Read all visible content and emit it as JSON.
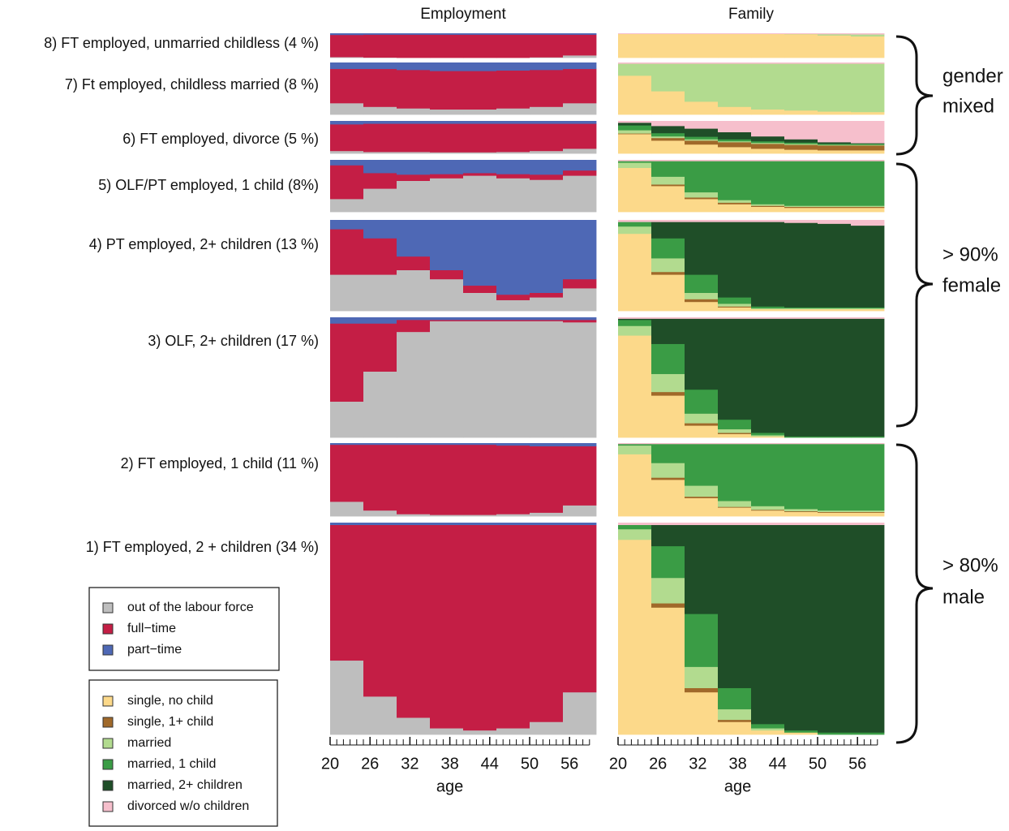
{
  "chart_data": [
    {
      "type": "stacked-step",
      "title": "Employment",
      "x_label": "age",
      "x": [
        20,
        25,
        30,
        35,
        40,
        45,
        50,
        55
      ],
      "xlim": [
        20,
        60
      ],
      "ylim": [
        0,
        100
      ],
      "xticks": [
        20,
        26,
        32,
        38,
        44,
        50,
        56
      ],
      "xminorticks": [
        20,
        21,
        22,
        23,
        24,
        25,
        26,
        27,
        28,
        29,
        30,
        31,
        32,
        33,
        34,
        35,
        36,
        37,
        38,
        39,
        40,
        41,
        42,
        43,
        44,
        45,
        46,
        47,
        48,
        49,
        50,
        51,
        52,
        53,
        54,
        55,
        56,
        57,
        58,
        59
      ],
      "series": [
        {
          "name": "out of the labour force",
          "color": "#bebebe"
        },
        {
          "name": "full−time",
          "color": "#c41e45"
        },
        {
          "name": "part−time",
          "color": "#4e68b5"
        }
      ],
      "panels": [
        {
          "label": "8) FT employed, unmarried childless (4 %)",
          "values": [
            [
              3,
              1,
              0,
              0,
              0,
              0,
              2,
              10
            ],
            [
              91,
              94,
              95,
              95,
              95,
              95,
              93,
              85
            ],
            [
              6,
              5,
              5,
              5,
              5,
              5,
              5,
              5
            ]
          ]
        },
        {
          "label": "7) Ft employed, childless married  (8 %)",
          "values": [
            [
              22,
              15,
              12,
              10,
              10,
              12,
              15,
              22
            ],
            [
              66,
              73,
              74,
              74,
              74,
              73,
              71,
              66
            ],
            [
              12,
              12,
              14,
              16,
              16,
              15,
              14,
              12
            ]
          ]
        },
        {
          "label": "6) FT employed, divorce  (5 %)",
          "values": [
            [
              8,
              5,
              5,
              4,
              4,
              5,
              8,
              15
            ],
            [
              82,
              87,
              87,
              88,
              88,
              87,
              84,
              77
            ],
            [
              10,
              8,
              8,
              8,
              8,
              8,
              8,
              8
            ]
          ]
        },
        {
          "label": "5) OLF/PT employed, 1 child (8%)",
          "values": [
            [
              25,
              45,
              60,
              65,
              70,
              65,
              62,
              70
            ],
            [
              65,
              30,
              12,
              8,
              5,
              8,
              10,
              10
            ],
            [
              10,
              25,
              28,
              27,
              25,
              27,
              28,
              20
            ]
          ]
        },
        {
          "label": "4) PT employed, 2+ children (13 %)",
          "values": [
            [
              40,
              40,
              45,
              35,
              20,
              12,
              15,
              25
            ],
            [
              50,
              40,
              15,
              10,
              8,
              6,
              5,
              10
            ],
            [
              10,
              20,
              40,
              55,
              72,
              82,
              80,
              65
            ]
          ]
        },
        {
          "label": "3) OLF, 2+ children (17 %)",
          "values": [
            [
              30,
              55,
              88,
              97,
              97,
              97,
              97,
              96
            ],
            [
              65,
              40,
              10,
              1,
              1,
              1,
              1,
              2
            ],
            [
              5,
              5,
              2,
              2,
              2,
              2,
              2,
              2
            ]
          ]
        },
        {
          "label": "2) FT employed, 1 child (11 %)",
          "values": [
            [
              20,
              8,
              3,
              2,
              2,
              3,
              5,
              15
            ],
            [
              78,
              90,
              95,
              96,
              96,
              94,
              91,
              81
            ],
            [
              2,
              2,
              2,
              2,
              2,
              3,
              4,
              4
            ]
          ]
        },
        {
          "label": "1)  FT employed, 2 + children (34 %)",
          "values": [
            [
              35,
              18,
              8,
              3,
              2,
              3,
              6,
              20
            ],
            [
              64,
              81,
              91,
              96,
              97,
              96,
              93,
              79
            ],
            [
              1,
              1,
              1,
              1,
              1,
              1,
              1,
              1
            ]
          ]
        }
      ]
    },
    {
      "type": "stacked-step",
      "title": "Family",
      "x_label": "age",
      "x": [
        20,
        25,
        30,
        35,
        40,
        45,
        50,
        55
      ],
      "xlim": [
        20,
        60
      ],
      "ylim": [
        0,
        100
      ],
      "xticks": [
        20,
        26,
        32,
        38,
        44,
        50,
        56
      ],
      "xminorticks": [
        20,
        21,
        22,
        23,
        24,
        25,
        26,
        27,
        28,
        29,
        30,
        31,
        32,
        33,
        34,
        35,
        36,
        37,
        38,
        39,
        40,
        41,
        42,
        43,
        44,
        45,
        46,
        47,
        48,
        49,
        50,
        51,
        52,
        53,
        54,
        55,
        56,
        57,
        58,
        59
      ],
      "series": [
        {
          "name": "single, no child",
          "color": "#fcd98a"
        },
        {
          "name": "single, 1+ child",
          "color": "#a0692a"
        },
        {
          "name": "married",
          "color": "#b2db8f"
        },
        {
          "name": "married, 1 child",
          "color": "#3a9c45"
        },
        {
          "name": "married, 2+ children",
          "color": "#1f4e28"
        },
        {
          "name": "divorced w/o children",
          "color": "#f6bfcc"
        }
      ],
      "panels": [
        {
          "values": [
            [
              98,
              98,
              98,
              98,
              98,
              97,
              92,
              88
            ],
            [
              0,
              0,
              0,
              0,
              0,
              0,
              0,
              0
            ],
            [
              0,
              0,
              0,
              0,
              0,
              1,
              5,
              8
            ],
            [
              0,
              0,
              0,
              0,
              0,
              0,
              0,
              0
            ],
            [
              0,
              0,
              0,
              0,
              0,
              0,
              0,
              0
            ],
            [
              2,
              2,
              2,
              2,
              2,
              2,
              3,
              4
            ]
          ]
        },
        {
          "values": [
            [
              75,
              45,
              25,
              15,
              10,
              8,
              6,
              5
            ],
            [
              0,
              0,
              0,
              0,
              0,
              0,
              0,
              0
            ],
            [
              23,
              53,
              73,
              83,
              88,
              90,
              92,
              93
            ],
            [
              0,
              0,
              0,
              0,
              0,
              0,
              0,
              0
            ],
            [
              0,
              0,
              0,
              0,
              0,
              0,
              0,
              0
            ],
            [
              2,
              2,
              2,
              2,
              2,
              2,
              2,
              2
            ]
          ]
        },
        {
          "values": [
            [
              60,
              40,
              28,
              20,
              15,
              12,
              10,
              10
            ],
            [
              2,
              8,
              12,
              15,
              15,
              15,
              15,
              15
            ],
            [
              10,
              5,
              4,
              3,
              3,
              3,
              2,
              2
            ],
            [
              15,
              10,
              8,
              6,
              5,
              4,
              3,
              3
            ],
            [
              8,
              22,
              25,
              22,
              15,
              10,
              5,
              2
            ],
            [
              5,
              15,
              23,
              34,
              47,
              56,
              65,
              68
            ]
          ]
        },
        {
          "values": [
            [
              85,
              50,
              25,
              15,
              10,
              8,
              8,
              8
            ],
            [
              0,
              3,
              3,
              3,
              2,
              2,
              2,
              2
            ],
            [
              10,
              15,
              10,
              5,
              3,
              2,
              2,
              2
            ],
            [
              3,
              30,
              60,
              75,
              83,
              86,
              86,
              86
            ],
            [
              0,
              0,
              0,
              0,
              0,
              0,
              0,
              0
            ],
            [
              2,
              2,
              2,
              2,
              2,
              2,
              2,
              2
            ]
          ]
        },
        {
          "values": [
            [
              85,
              40,
              10,
              4,
              2,
              2,
              2,
              2
            ],
            [
              0,
              3,
              3,
              1,
              0,
              0,
              0,
              0
            ],
            [
              8,
              15,
              7,
              3,
              1,
              1,
              1,
              1
            ],
            [
              5,
              22,
              20,
              7,
              2,
              1,
              1,
              1
            ],
            [
              0,
              18,
              58,
              83,
              93,
              93,
              92,
              90
            ],
            [
              2,
              2,
              2,
              2,
              2,
              3,
              4,
              6
            ]
          ]
        },
        {
          "values": [
            [
              85,
              35,
              10,
              3,
              1,
              0,
              0,
              0
            ],
            [
              0,
              3,
              2,
              1,
              0,
              0,
              0,
              0
            ],
            [
              8,
              15,
              8,
              3,
              1,
              0,
              0,
              0
            ],
            [
              5,
              25,
              20,
              8,
              2,
              1,
              1,
              1
            ],
            [
              1,
              21,
              59,
              84,
              95,
              98,
              98,
              98
            ],
            [
              1,
              1,
              1,
              1,
              1,
              1,
              1,
              1
            ]
          ]
        },
        {
          "values": [
            [
              85,
              50,
              25,
              12,
              8,
              6,
              5,
              5
            ],
            [
              0,
              3,
              2,
              1,
              1,
              1,
              1,
              1
            ],
            [
              12,
              20,
              15,
              8,
              5,
              3,
              2,
              2
            ],
            [
              2,
              26,
              57,
              78,
              85,
              89,
              91,
              91
            ],
            [
              0,
              0,
              0,
              0,
              0,
              0,
              0,
              0
            ],
            [
              1,
              1,
              1,
              1,
              1,
              1,
              1,
              1
            ]
          ]
        },
        {
          "values": [
            [
              92,
              60,
              20,
              6,
              2,
              1,
              0,
              0
            ],
            [
              0,
              2,
              2,
              1,
              0,
              0,
              0,
              0
            ],
            [
              5,
              12,
              10,
              5,
              1,
              0,
              0,
              0
            ],
            [
              2,
              15,
              25,
              10,
              2,
              1,
              1,
              1
            ],
            [
              0,
              10,
              42,
              77,
              94,
              97,
              98,
              98
            ],
            [
              1,
              1,
              1,
              1,
              1,
              1,
              1,
              1
            ]
          ]
        }
      ]
    }
  ],
  "annotations": [
    [
      "gender",
      "mixed"
    ],
    [
      "> 90%",
      "female"
    ],
    [
      "> 80%",
      "male"
    ]
  ]
}
